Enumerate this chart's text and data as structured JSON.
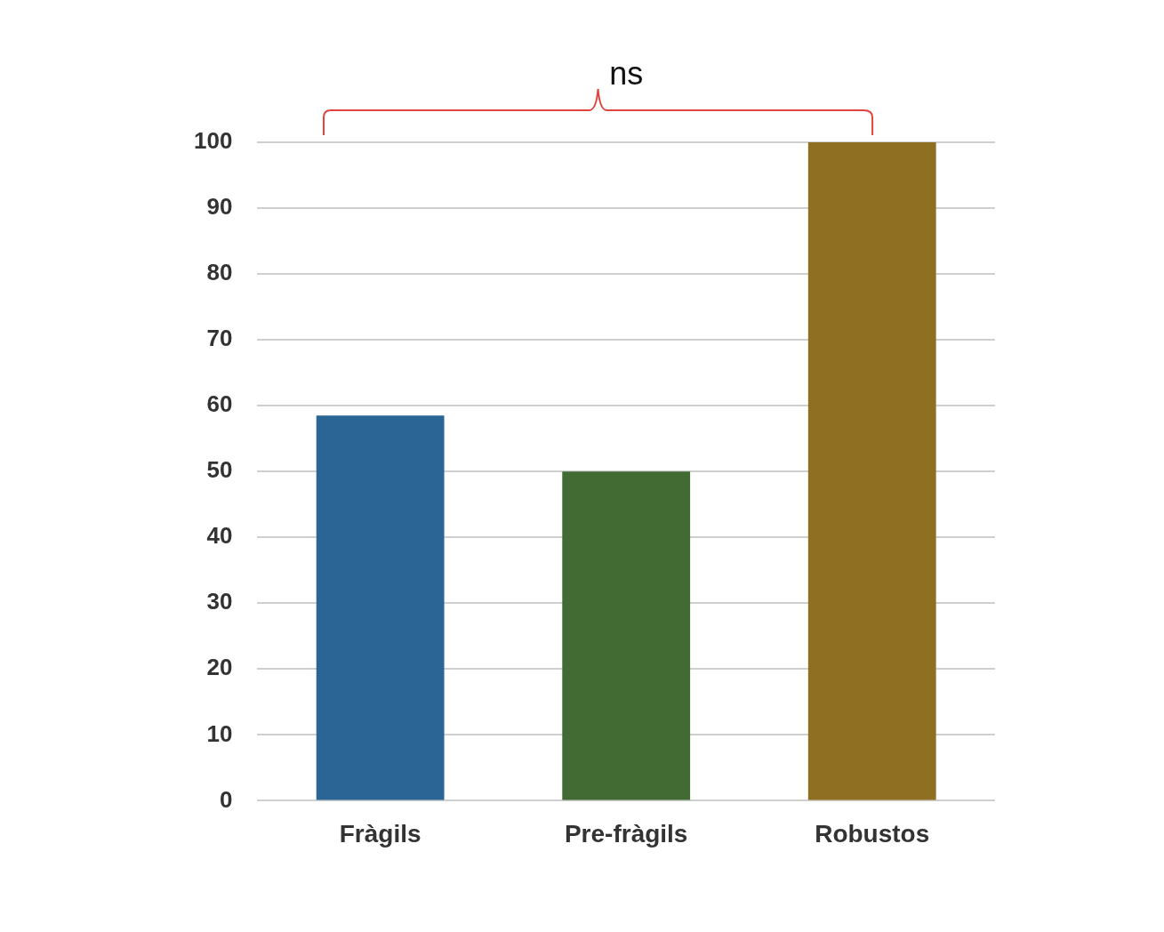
{
  "chart_data": {
    "type": "bar",
    "categories": [
      "Fràgils",
      "Pre-fràgils",
      "Robustos"
    ],
    "values": [
      58.5,
      50,
      100
    ],
    "colors": [
      "#2a6595",
      "#426a33",
      "#8f7023"
    ],
    "ylim": [
      0,
      100
    ],
    "yticks": [
      0,
      10,
      20,
      30,
      40,
      50,
      60,
      70,
      80,
      90,
      100
    ],
    "grid": "y",
    "legend": false,
    "annotations": [
      "ns"
    ]
  }
}
